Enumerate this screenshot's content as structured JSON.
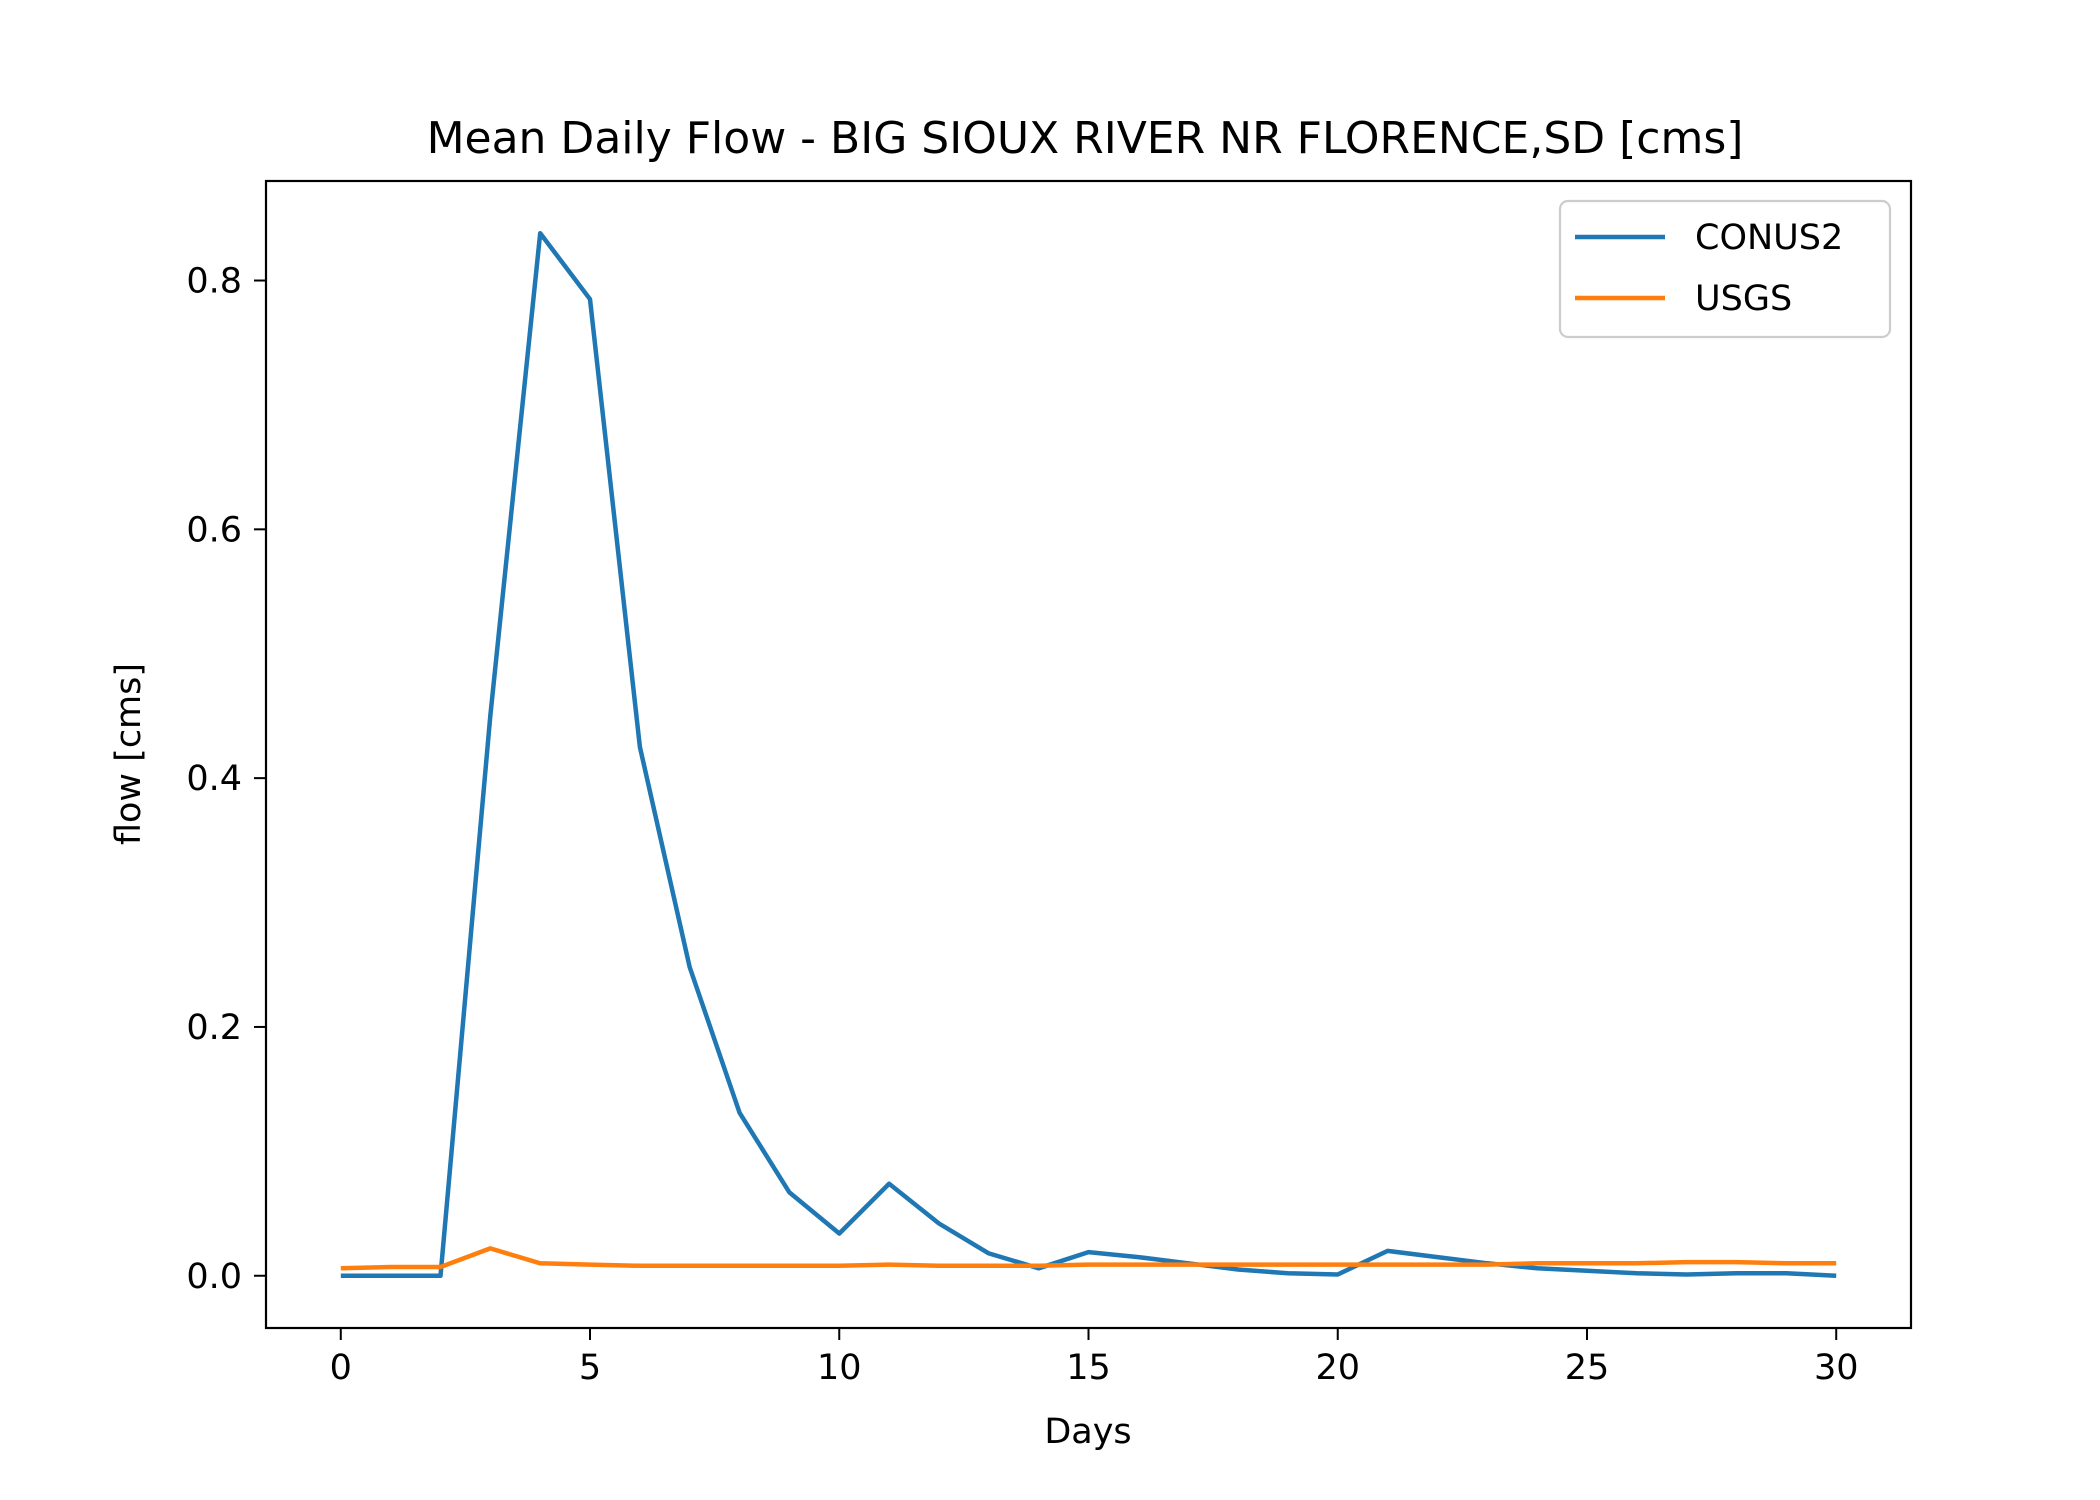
{
  "chart_data": {
    "type": "line",
    "title": "Mean Daily Flow - BIG SIOUX RIVER NR FLORENCE,SD [cms]",
    "xlabel": "Days",
    "ylabel": "flow [cms]",
    "xlim": [
      -1.5,
      31.5
    ],
    "ylim": [
      -0.042,
      0.88
    ],
    "xticks": [
      0,
      5,
      10,
      15,
      20,
      25,
      30
    ],
    "xtick_labels": [
      "0",
      "5",
      "10",
      "15",
      "20",
      "25",
      "30"
    ],
    "yticks": [
      0.0,
      0.2,
      0.4,
      0.6,
      0.8
    ],
    "ytick_labels": [
      "0.0",
      "0.2",
      "0.4",
      "0.6",
      "0.8"
    ],
    "grid": false,
    "legend_position": "top-right",
    "x": [
      0,
      1,
      2,
      3,
      4,
      5,
      6,
      7,
      8,
      9,
      10,
      11,
      12,
      13,
      14,
      15,
      16,
      17,
      18,
      19,
      20,
      21,
      22,
      23,
      24,
      25,
      26,
      27,
      28,
      29,
      30
    ],
    "series": [
      {
        "name": "CONUS2",
        "color": "#1f77b4",
        "values": [
          0.0,
          0.0,
          0.0,
          0.45,
          0.838,
          0.785,
          0.425,
          0.248,
          0.131,
          0.067,
          0.034,
          0.074,
          0.042,
          0.018,
          0.006,
          0.019,
          0.015,
          0.01,
          0.005,
          0.002,
          0.001,
          0.02,
          0.015,
          0.01,
          0.006,
          0.004,
          0.002,
          0.001,
          0.002,
          0.002,
          0.0
        ]
      },
      {
        "name": "USGS",
        "color": "#ff7f0e",
        "values": [
          0.006,
          0.007,
          0.007,
          0.022,
          0.01,
          0.009,
          0.008,
          0.008,
          0.008,
          0.008,
          0.008,
          0.009,
          0.008,
          0.008,
          0.008,
          0.009,
          0.009,
          0.009,
          0.009,
          0.009,
          0.009,
          0.009,
          0.009,
          0.009,
          0.01,
          0.01,
          0.01,
          0.011,
          0.011,
          0.01,
          0.01
        ]
      }
    ]
  }
}
